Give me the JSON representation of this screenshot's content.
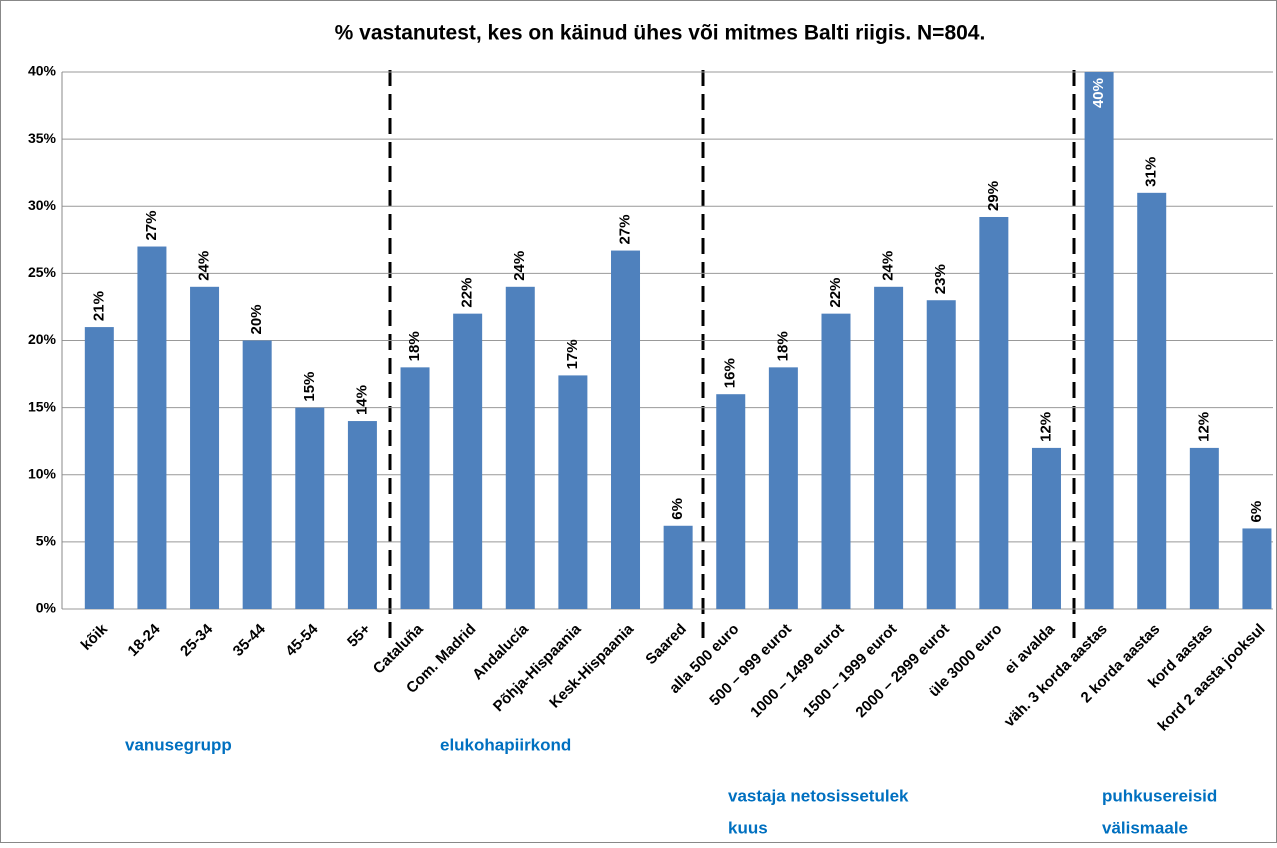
{
  "chart_data": {
    "type": "bar",
    "title": "% vastanutest, kes on käinud ühes või mitmes Balti riigis. N=804.",
    "categories": [
      "kõik",
      "18-24",
      "25-34",
      "35-44",
      "45-54",
      "55+",
      "Cataluña",
      "Com. Madrid",
      "Andalucía",
      "Põhja-Hispaania",
      "Kesk-Hispaania",
      "Saared",
      "alla 500 euro",
      "500 – 999 eurot",
      "1000 – 1499 eurot",
      "1500 – 1999 eurot",
      "2000 – 2999 eurot",
      "üle 3000 euro",
      "ei avalda",
      "väh. 3 korda aastas",
      "2 korda aastas",
      "kord aastas",
      "kord 2 aasta jooksul"
    ],
    "values": [
      21,
      27,
      24,
      20,
      15,
      14,
      18,
      22,
      24,
      17.4,
      26.7,
      6.2,
      16,
      18,
      22,
      24,
      23,
      29.2,
      12,
      40,
      31,
      12,
      6
    ],
    "value_labels": [
      "21%",
      "27%",
      "24%",
      "20%",
      "15%",
      "14%",
      "18%",
      "22%",
      "24%",
      "17%",
      "27%",
      "6%",
      "16%",
      "18%",
      "22%",
      "24%",
      "23%",
      "29%",
      "12%",
      "40%",
      "31%",
      "12%",
      "6%"
    ],
    "color": "#4f81bd",
    "ylim": [
      0,
      40
    ],
    "yticks": [
      {
        "value": 0,
        "label": "0%"
      },
      {
        "value": 5,
        "label": "5%"
      },
      {
        "value": 10,
        "label": "10%"
      },
      {
        "value": 15,
        "label": "15%"
      },
      {
        "value": 20,
        "label": "20%"
      },
      {
        "value": 25,
        "label": "25%"
      },
      {
        "value": 30,
        "label": "30%"
      },
      {
        "value": 35,
        "label": "35%"
      },
      {
        "value": 40,
        "label": "40%"
      }
    ],
    "grid": true,
    "groups": [
      {
        "label": [
          "vanusegrupp"
        ]
      },
      {
        "label": [
          "elukohapiirkond"
        ]
      },
      {
        "label": [
          "vastaja  netosissetulek",
          "kuus"
        ]
      },
      {
        "label": [
          "puhkusereisid",
          "välismaale"
        ]
      }
    ]
  }
}
